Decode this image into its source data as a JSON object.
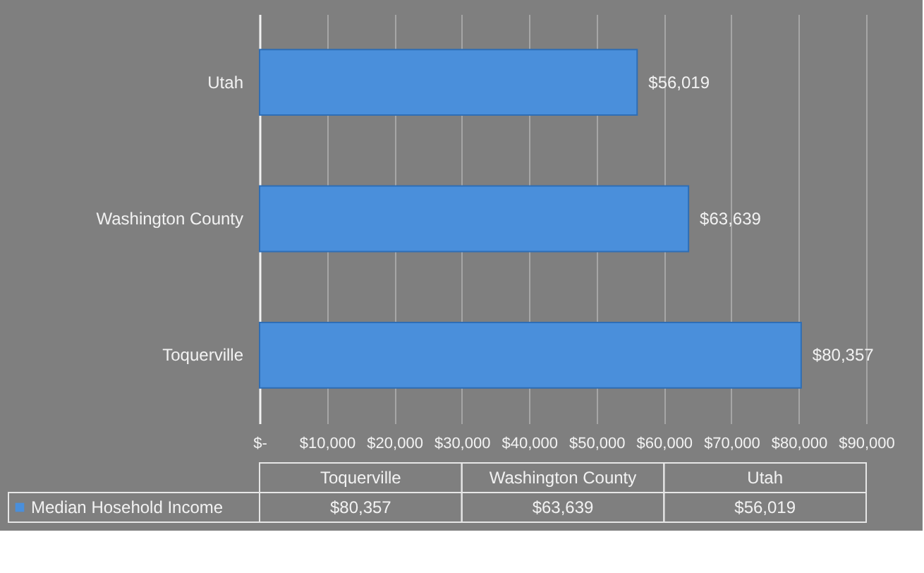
{
  "chart_data": {
    "type": "bar",
    "orientation": "horizontal",
    "categories": [
      "Utah",
      "Washington County",
      "Toquerville"
    ],
    "series": [
      {
        "name": "Median Hosehold Income",
        "color": "#4a8fdb",
        "values": [
          56019,
          63639,
          80357
        ],
        "value_labels": [
          "$56,019",
          "$63,639",
          "$80,357"
        ]
      }
    ],
    "xlim": [
      0,
      90000
    ],
    "xticks": [
      {
        "value": 0,
        "label": "$-"
      },
      {
        "value": 10000,
        "label": "$10,000"
      },
      {
        "value": 20000,
        "label": "$20,000"
      },
      {
        "value": 30000,
        "label": "$30,000"
      },
      {
        "value": 40000,
        "label": "$40,000"
      },
      {
        "value": 50000,
        "label": "$50,000"
      },
      {
        "value": 60000,
        "label": "$60,000"
      },
      {
        "value": 70000,
        "label": "$70,000"
      },
      {
        "value": 80000,
        "label": "$80,000"
      },
      {
        "value": 90000,
        "label": "$90,000"
      }
    ],
    "grid": "x",
    "legend": "bottom"
  }
}
